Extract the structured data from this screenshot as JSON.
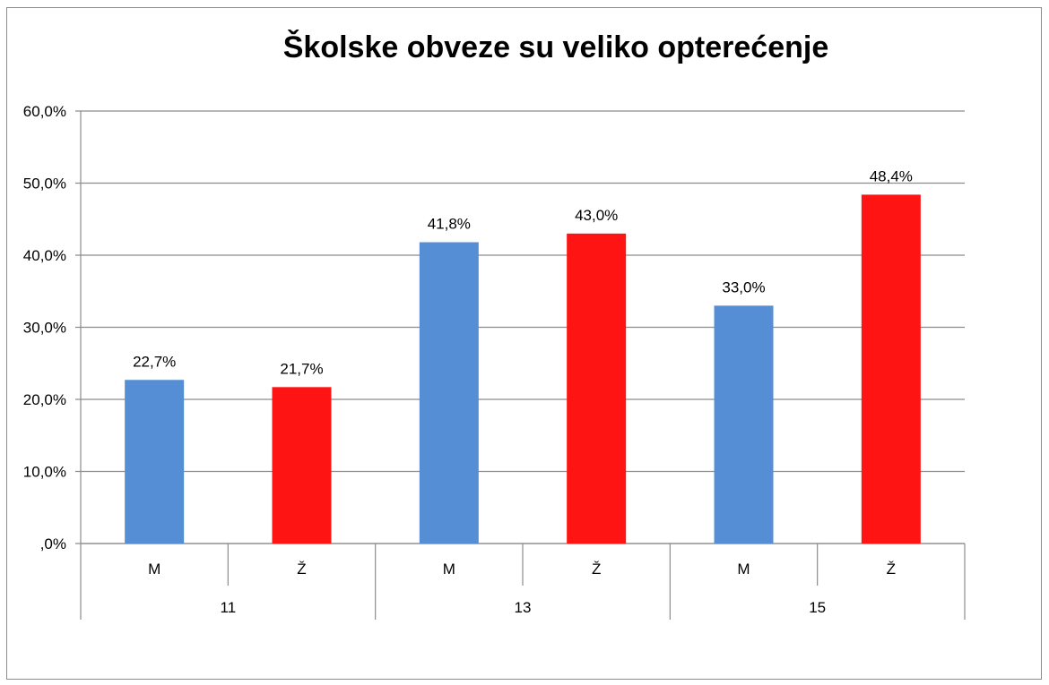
{
  "chart_data": {
    "type": "bar",
    "title": "Školske obveze su veliko opterećenje",
    "ylim": [
      0,
      60
    ],
    "yticks": [
      ",0%",
      "10,0%",
      "20,0%",
      "30,0%",
      "40,0%",
      "50,0%",
      "60,0%"
    ],
    "ytick_values": [
      0,
      10,
      20,
      30,
      40,
      50,
      60
    ],
    "grid": true,
    "legend": "none",
    "groups": [
      {
        "label": "11",
        "bars": [
          {
            "label": "M",
            "value": 22.7,
            "text": "22,7%",
            "color": "#558ed5"
          },
          {
            "label": "Ž",
            "value": 21.7,
            "text": "21,7%",
            "color": "#ff1414"
          }
        ]
      },
      {
        "label": "13",
        "bars": [
          {
            "label": "M",
            "value": 41.8,
            "text": "41,8%",
            "color": "#558ed5"
          },
          {
            "label": "Ž",
            "value": 43.0,
            "text": "43,0%",
            "color": "#ff1414"
          }
        ]
      },
      {
        "label": "15",
        "bars": [
          {
            "label": "M",
            "value": 33.0,
            "text": "33,0%",
            "color": "#558ed5"
          },
          {
            "label": "Ž",
            "value": 48.4,
            "text": "48,4%",
            "color": "#ff1414"
          }
        ]
      }
    ],
    "colors": {
      "M": "#558ed5",
      "Ž": "#ff1414",
      "grid": "#8c8c8c"
    }
  }
}
